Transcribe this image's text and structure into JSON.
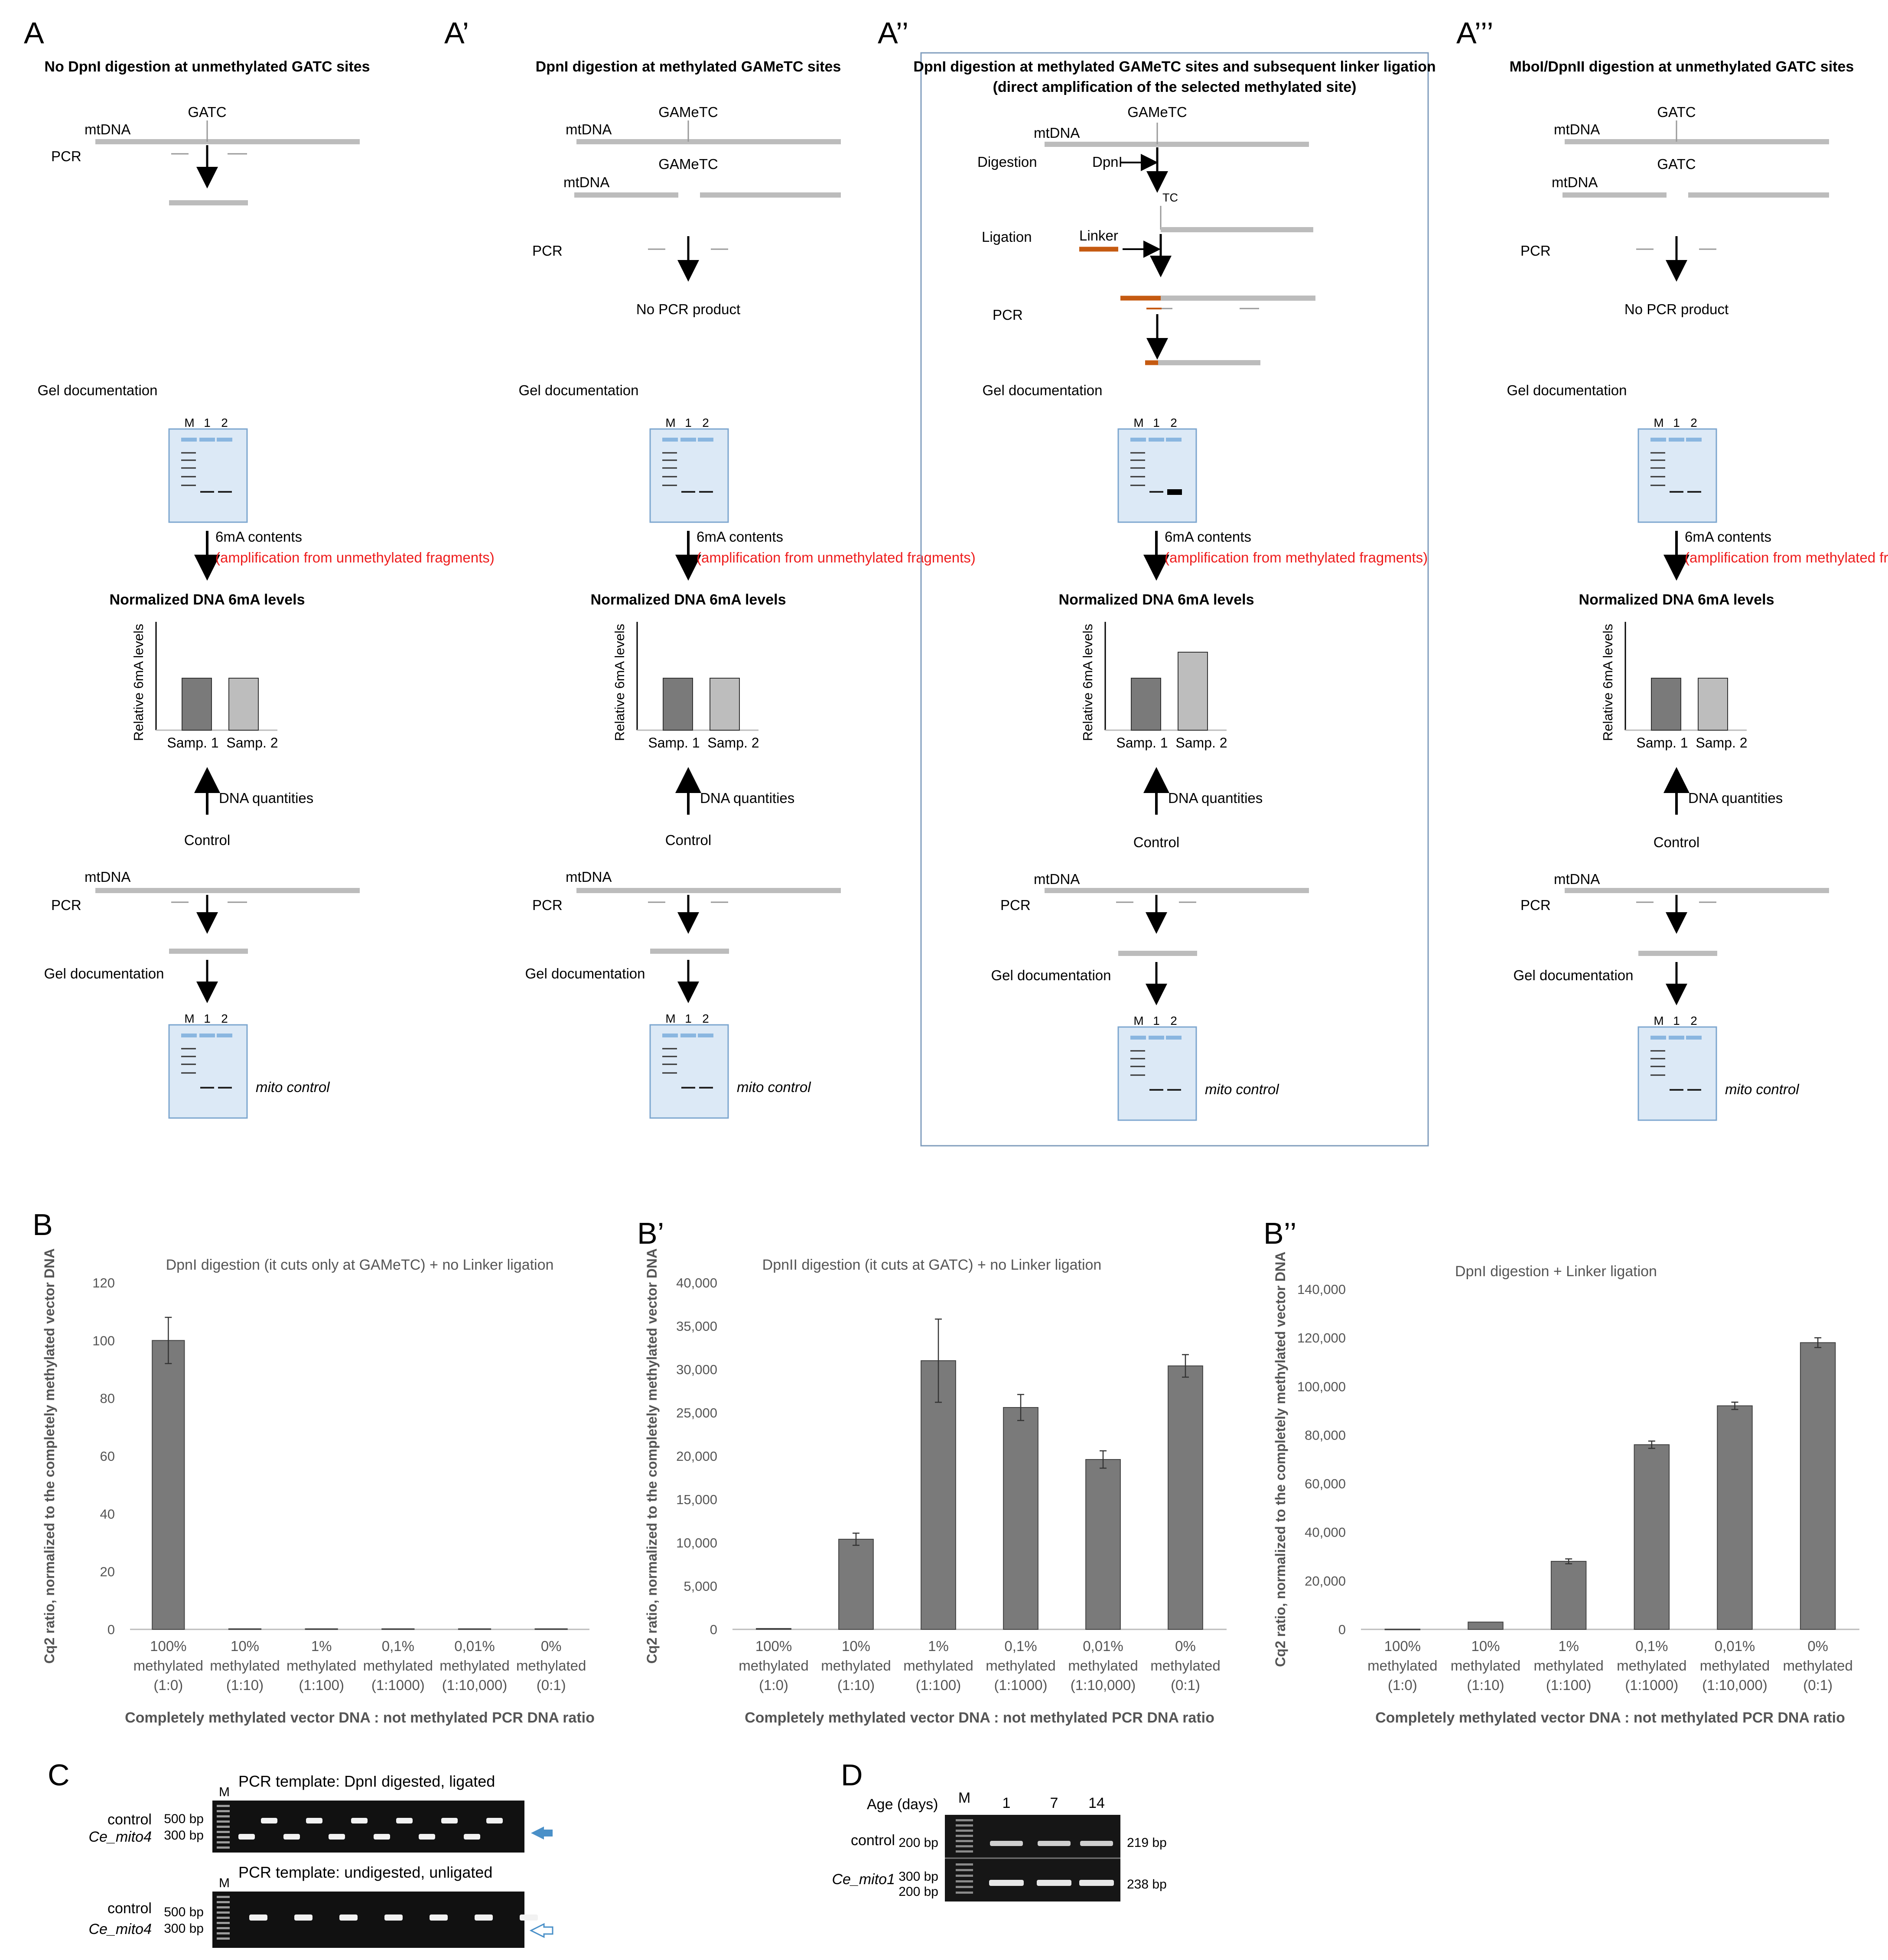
{
  "panel_a": [
    {
      "letter": "A",
      "title": "No DpnI digestion at unmethylated GATC sites",
      "site": "GATC",
      "mtdna": "mtDNA",
      "pcr": "PCR",
      "result": "",
      "gel": "Gel documentation",
      "lanes": [
        "M",
        "1",
        "2"
      ],
      "arrow_label": "6mA contents",
      "arrow_red": "(amplification from unmethylated fragments)",
      "norm_title": "Normalized DNA 6mA levels",
      "ylabel": "Relative 6mA levels",
      "bar_values": [
        1.0,
        1.0
      ],
      "bar_labels": [
        "Samp. 1",
        "Samp. 2"
      ],
      "dna_quant": "DNA quantities",
      "control": "Control",
      "mito_control": "mito control"
    },
    {
      "letter": "A’",
      "title": "DpnI digestion at methylated GAMeTC sites",
      "site": "GAMeTC",
      "mtdna": "mtDNA",
      "pcr": "PCR",
      "result": "No PCR product",
      "gel": "Gel documentation",
      "lanes": [
        "M",
        "1",
        "2"
      ],
      "arrow_label": "6mA contents",
      "arrow_red": "(amplification from unmethylated fragments)",
      "norm_title": "Normalized DNA 6mA levels",
      "ylabel": "Relative 6mA levels",
      "bar_values": [
        1.0,
        1.0
      ],
      "bar_labels": [
        "Samp. 1",
        "Samp. 2"
      ],
      "dna_quant": "DNA quantities",
      "control": "Control",
      "mito_control": "mito control"
    },
    {
      "letter": "A’’",
      "title": "DpnI digestion at methylated GAMeTC sites and subsequent linker ligation",
      "subtitle": "(direct amplification of the selected methylated site)",
      "site": "GAMeTC",
      "mtdna": "mtDNA",
      "pcr": "PCR",
      "steps": {
        "digestion": "Digestion",
        "dpni": "DpnI",
        "tc": "TC",
        "ligation": "Ligation",
        "linker": "Linker"
      },
      "gel": "Gel documentation",
      "lanes": [
        "M",
        "1",
        "2"
      ],
      "arrow_label": "6mA contents",
      "arrow_red": "(amplification from methylated fragments)",
      "norm_title": "Normalized DNA 6mA levels",
      "ylabel": "Relative 6mA levels",
      "bar_values": [
        1.0,
        1.5
      ],
      "bar_labels": [
        "Samp. 1",
        "Samp. 2"
      ],
      "dna_quant": "DNA quantities",
      "control": "Control",
      "mito_control": "mito control"
    },
    {
      "letter": "A’’’",
      "title": "MboI/DpnII digestion at unmethylated GATC sites",
      "site": "GATC",
      "mtdna": "mtDNA",
      "pcr": "PCR",
      "result": "No PCR product",
      "gel": "Gel documentation",
      "lanes": [
        "M",
        "1",
        "2"
      ],
      "arrow_label": "6mA contents",
      "arrow_red": "(amplification from methylated fragments)",
      "norm_title": "Normalized DNA 6mA levels",
      "ylabel": "Relative 6mA levels",
      "bar_values": [
        1.0,
        1.0
      ],
      "bar_labels": [
        "Samp. 1",
        "Samp. 2"
      ],
      "dna_quant": "DNA quantities",
      "control": "Control",
      "mito_control": "mito control"
    }
  ],
  "chart_data": [
    {
      "panel": "B",
      "type": "bar",
      "title": "DpnI digestion (it cuts only at GAMeTC) + no Linker ligation",
      "categories": [
        "100% methylated (1:0)",
        "10% methylated (1:10)",
        "1% methylated (1:100)",
        "0,1% methylated (1:1000)",
        "0,01% methylated (1:10,000)",
        "0% methylated (0:1)"
      ],
      "values": [
        100,
        0.2,
        0.2,
        0.2,
        0.2,
        0.2
      ],
      "errors": [
        8,
        0,
        0,
        0,
        0,
        0
      ],
      "ylim": [
        0,
        120
      ],
      "yticks": [
        0,
        20,
        40,
        60,
        80,
        100,
        120
      ],
      "ytick_labels": [
        "0",
        "20",
        "40",
        "60",
        "80",
        "100",
        "120"
      ],
      "ylabel": "Cq2 ratio, normalized to the completely methylated vector DNA",
      "xlabel": "Completely methylated vector DNA : not methylated PCR DNA ratio"
    },
    {
      "panel": "B’",
      "type": "bar",
      "title": "DpnII digestion (it cuts  at GATC) + no Linker ligation",
      "categories": [
        "100% methylated (1:0)",
        "10% methylated (1:10)",
        "1% methylated (1:100)",
        "0,1% methylated (1:1000)",
        "0,01% methylated (1:10,000)",
        "0% methylated (0:1)"
      ],
      "values": [
        100,
        10400,
        31000,
        25600,
        19600,
        30400
      ],
      "errors": [
        0,
        700,
        4800,
        1500,
        1000,
        1300
      ],
      "ylim": [
        0,
        40000
      ],
      "yticks": [
        0,
        5000,
        10000,
        15000,
        20000,
        25000,
        30000,
        35000,
        40000
      ],
      "ytick_labels": [
        "0",
        "5,000",
        "10,000",
        "15,000",
        "20,000",
        "25,000",
        "30,000",
        "35,000",
        "40,000"
      ],
      "ylabel": "Cq2 ratio, normalized to the completely methylated vector DNA",
      "xlabel": "Completely methylated vector DNA : not methylated PCR DNA ratio"
    },
    {
      "panel": "B’’",
      "type": "bar",
      "title": "DpnI digestion + Linker ligation",
      "categories": [
        "100% methylated (1:0)",
        "10% methylated (1:10)",
        "1% methylated (1:100)",
        "0,1% methylated (1:1000)",
        "0,01% methylated (1:10,000)",
        "0% methylated (0:1)"
      ],
      "values": [
        100,
        3000,
        28000,
        76000,
        92000,
        118000
      ],
      "errors": [
        0,
        0,
        1000,
        1500,
        1500,
        2000
      ],
      "ylim": [
        0,
        140000
      ],
      "yticks": [
        0,
        20000,
        40000,
        60000,
        80000,
        100000,
        120000,
        140000
      ],
      "ytick_labels": [
        "0",
        "20,000",
        "40,000",
        "60,000",
        "80,000",
        "100,000",
        "120,000",
        "140,000"
      ],
      "ylabel": "Cq2 ratio, normalized to the completely methylated vector DNA",
      "xlabel": "Completely methylated vector DNA : not methylated PCR DNA ratio"
    }
  ],
  "panel_c": {
    "letter": "C",
    "top_title": "PCR template: DpnI digested, ligated",
    "bottom_title": "PCR template: undigested, unligated",
    "marker": "M",
    "control": "control",
    "gene": "Ce_mito4",
    "size_500": "500 bp",
    "size_300": "300 bp"
  },
  "panel_d": {
    "letter": "D",
    "age_label": "Age (days)",
    "marker": "M",
    "ages": [
      "1",
      "7",
      "14"
    ],
    "control": "control",
    "gene": "Ce_mito1",
    "size_200": "200 bp",
    "size_300": "300 bp",
    "band_219": "219 bp",
    "band_238": "238 bp"
  },
  "colors": {
    "red": "#ee1c1c",
    "bar_dark": "#7a7a7a",
    "bar_light": "#bdbdbd",
    "gel_fill": "#dce9f6",
    "gel_border": "#7ca6cf",
    "box_border": "#7f9cbc",
    "dna": "#bcbcbc",
    "linker": "#c55a11",
    "arrow_blue": "#4a90c8"
  }
}
